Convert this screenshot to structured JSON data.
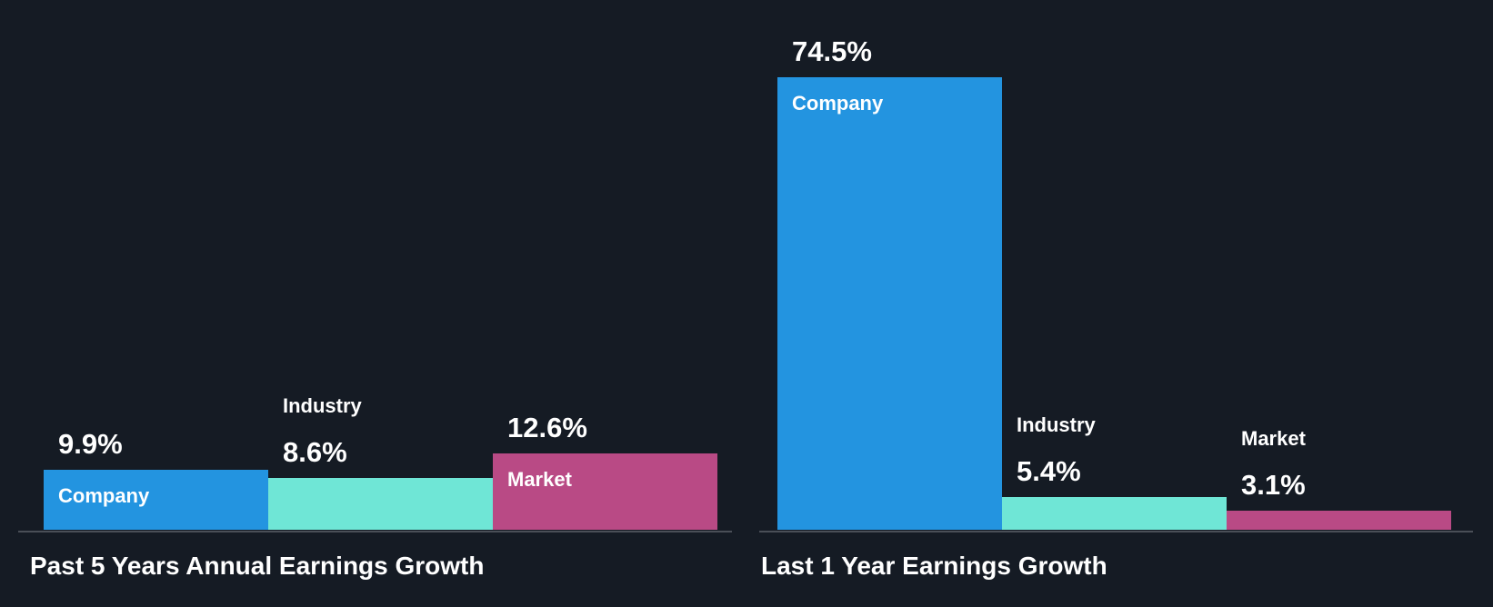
{
  "colors": {
    "Company": "#2394e0",
    "Industry": "#6fe6d6",
    "Market": "#b94a85",
    "background": "#151b24"
  },
  "chart_data": [
    {
      "type": "bar",
      "title": "Past 5 Years Annual Earnings Growth",
      "categories": [
        "Company",
        "Industry",
        "Market"
      ],
      "values": [
        9.9,
        8.6,
        12.6
      ],
      "value_labels": [
        "9.9%",
        "8.6%",
        "12.6%"
      ],
      "unit": "%"
    },
    {
      "type": "bar",
      "title": "Last 1 Year Earnings Growth",
      "categories": [
        "Company",
        "Industry",
        "Market"
      ],
      "values": [
        74.5,
        5.4,
        3.1
      ],
      "value_labels": [
        "74.5%",
        "5.4%",
        "3.1%"
      ],
      "unit": "%"
    }
  ]
}
